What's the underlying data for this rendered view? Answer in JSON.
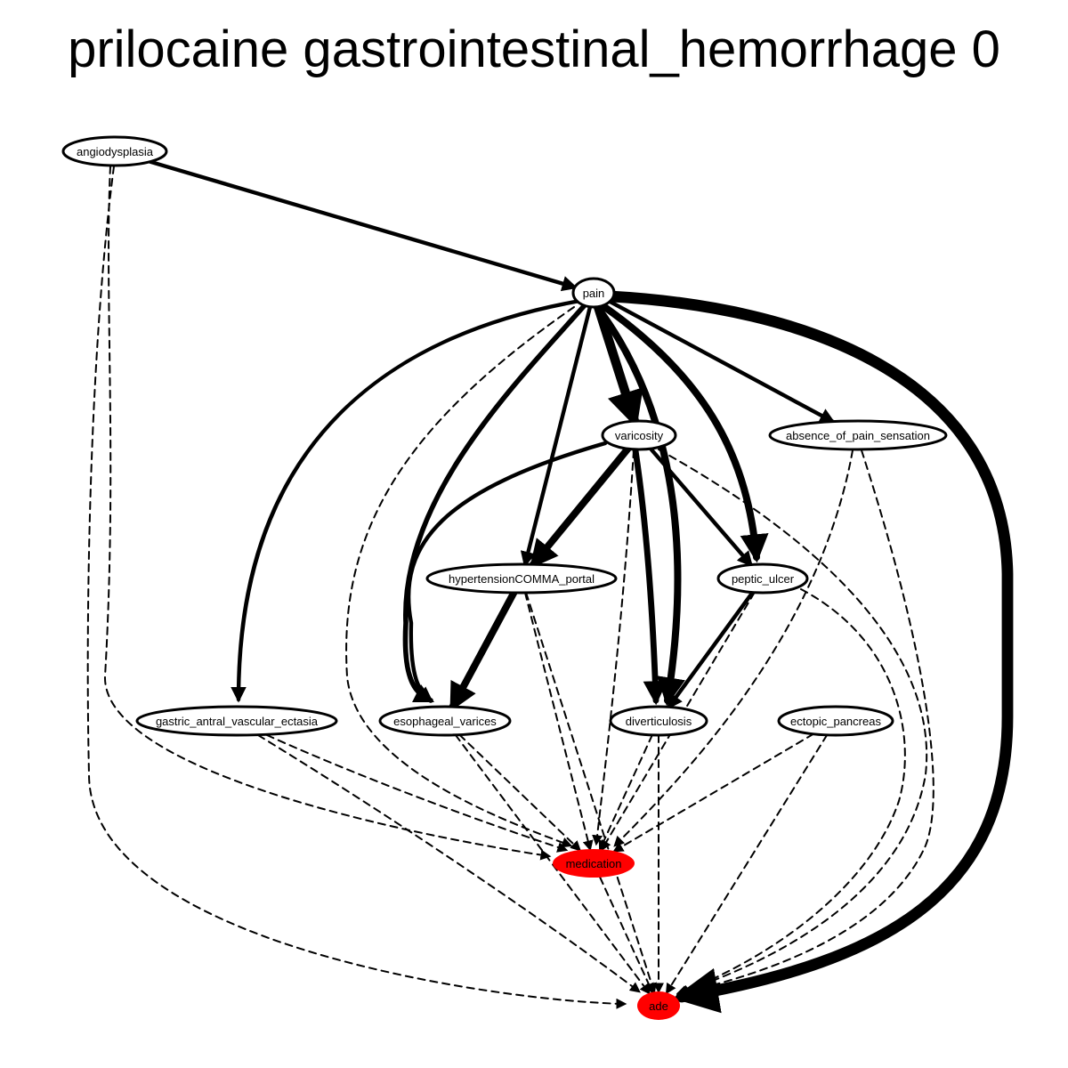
{
  "title": "prilocaine gastrointestinal_hemorrhage 0",
  "colors": {
    "highlight": "#ff0000",
    "edge": "#000000",
    "node_fill": "#ffffff"
  },
  "nodes": [
    {
      "id": "angiodysplasia",
      "label": "angiodysplasia",
      "highlight": false
    },
    {
      "id": "pain",
      "label": "pain",
      "highlight": false
    },
    {
      "id": "varicosity",
      "label": "varicosity",
      "highlight": false
    },
    {
      "id": "absence_of_pain_sensation",
      "label": "absence_of_pain_sensation",
      "highlight": false
    },
    {
      "id": "hypertension_portal",
      "label": "hypertensionCOMMA_portal",
      "highlight": false
    },
    {
      "id": "peptic_ulcer",
      "label": "peptic_ulcer",
      "highlight": false
    },
    {
      "id": "gastric_antral_vascular_ectasia",
      "label": "gastric_antral_vascular_ectasia",
      "highlight": false
    },
    {
      "id": "esophageal_varices",
      "label": "esophageal_varices",
      "highlight": false
    },
    {
      "id": "diverticulosis",
      "label": "diverticulosis",
      "highlight": false
    },
    {
      "id": "ectopic_pancreas",
      "label": "ectopic_pancreas",
      "highlight": false
    },
    {
      "id": "medication",
      "label": "medication",
      "highlight": true
    },
    {
      "id": "ade",
      "label": "ade",
      "highlight": true
    }
  ],
  "edges": [
    {
      "from": "angiodysplasia",
      "to": "pain",
      "style": "solid",
      "weight": 3
    },
    {
      "from": "angiodysplasia",
      "to": "medication",
      "style": "dashed",
      "weight": 1
    },
    {
      "from": "angiodysplasia",
      "to": "ade",
      "style": "dashed",
      "weight": 1
    },
    {
      "from": "pain",
      "to": "varicosity",
      "style": "solid",
      "weight": 8
    },
    {
      "from": "pain",
      "to": "absence_of_pain_sensation",
      "style": "solid",
      "weight": 3
    },
    {
      "from": "pain",
      "to": "hypertension_portal",
      "style": "solid",
      "weight": 3
    },
    {
      "from": "pain",
      "to": "peptic_ulcer",
      "style": "solid",
      "weight": 6
    },
    {
      "from": "pain",
      "to": "gastric_antral_vascular_ectasia",
      "style": "solid",
      "weight": 3
    },
    {
      "from": "pain",
      "to": "esophageal_varices",
      "style": "solid",
      "weight": 4
    },
    {
      "from": "pain",
      "to": "diverticulosis",
      "style": "solid",
      "weight": 6
    },
    {
      "from": "pain",
      "to": "medication",
      "style": "dashed",
      "weight": 1
    },
    {
      "from": "pain",
      "to": "ade",
      "style": "solid",
      "weight": 10
    },
    {
      "from": "varicosity",
      "to": "hypertension_portal",
      "style": "solid",
      "weight": 6
    },
    {
      "from": "varicosity",
      "to": "esophageal_varices",
      "style": "solid",
      "weight": 3
    },
    {
      "from": "varicosity",
      "to": "diverticulosis",
      "style": "solid",
      "weight": 5
    },
    {
      "from": "varicosity",
      "to": "peptic_ulcer",
      "style": "solid",
      "weight": 3
    },
    {
      "from": "varicosity",
      "to": "medication",
      "style": "dashed",
      "weight": 1
    },
    {
      "from": "varicosity",
      "to": "ade",
      "style": "dashed",
      "weight": 1
    },
    {
      "from": "absence_of_pain_sensation",
      "to": "medication",
      "style": "dashed",
      "weight": 1
    },
    {
      "from": "absence_of_pain_sensation",
      "to": "ade",
      "style": "dashed",
      "weight": 1
    },
    {
      "from": "hypertension_portal",
      "to": "esophageal_varices",
      "style": "solid",
      "weight": 6
    },
    {
      "from": "hypertension_portal",
      "to": "medication",
      "style": "dashed",
      "weight": 1
    },
    {
      "from": "hypertension_portal",
      "to": "ade",
      "style": "dashed",
      "weight": 1
    },
    {
      "from": "peptic_ulcer",
      "to": "diverticulosis",
      "style": "solid",
      "weight": 3
    },
    {
      "from": "peptic_ulcer",
      "to": "medication",
      "style": "dashed",
      "weight": 1
    },
    {
      "from": "peptic_ulcer",
      "to": "ade",
      "style": "dashed",
      "weight": 1
    },
    {
      "from": "gastric_antral_vascular_ectasia",
      "to": "medication",
      "style": "dashed",
      "weight": 1
    },
    {
      "from": "gastric_antral_vascular_ectasia",
      "to": "ade",
      "style": "dashed",
      "weight": 1
    },
    {
      "from": "esophageal_varices",
      "to": "medication",
      "style": "dashed",
      "weight": 1
    },
    {
      "from": "esophageal_varices",
      "to": "ade",
      "style": "dashed",
      "weight": 1
    },
    {
      "from": "diverticulosis",
      "to": "medication",
      "style": "dashed",
      "weight": 1
    },
    {
      "from": "diverticulosis",
      "to": "ade",
      "style": "dashed",
      "weight": 1
    },
    {
      "from": "ectopic_pancreas",
      "to": "medication",
      "style": "dashed",
      "weight": 1
    },
    {
      "from": "ectopic_pancreas",
      "to": "ade",
      "style": "dashed",
      "weight": 1
    },
    {
      "from": "medication",
      "to": "ade",
      "style": "dashed",
      "weight": 1
    }
  ]
}
